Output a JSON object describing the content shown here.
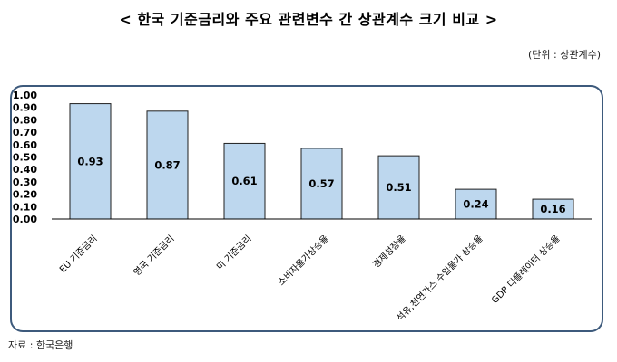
{
  "title": "< 한국 기준금리와 주요 관련변수 간 상관계수 크기 비교 >",
  "unit_note": "(단위 : 상관계수)",
  "source": "자료 : 한국은행",
  "colors": {
    "bar_fill": "#bdd7ee",
    "bar_stroke": "#1f1f1f",
    "frame": "#3d5a7c"
  },
  "chart_data": {
    "type": "bar",
    "categories": [
      "EU 기준금리",
      "영국 기준금리",
      "미 기준금리",
      "소비자물가상승율",
      "경제성장율",
      "석유,천연가스 수입물가 상승율",
      "GDP 디플레이터 상승율"
    ],
    "values": [
      0.93,
      0.87,
      0.61,
      0.57,
      0.51,
      0.24,
      0.16
    ],
    "data_labels": [
      "0.93",
      "0.87",
      "0.61",
      "0.57",
      "0.51",
      "0.24",
      "0.16"
    ],
    "y_ticks": [
      "0.00",
      "0.10",
      "0.20",
      "0.30",
      "0.40",
      "0.50",
      "0.60",
      "0.70",
      "0.80",
      "0.90",
      "1.00"
    ],
    "ylim": [
      0,
      1.0
    ],
    "grid": false,
    "legend": "none"
  }
}
